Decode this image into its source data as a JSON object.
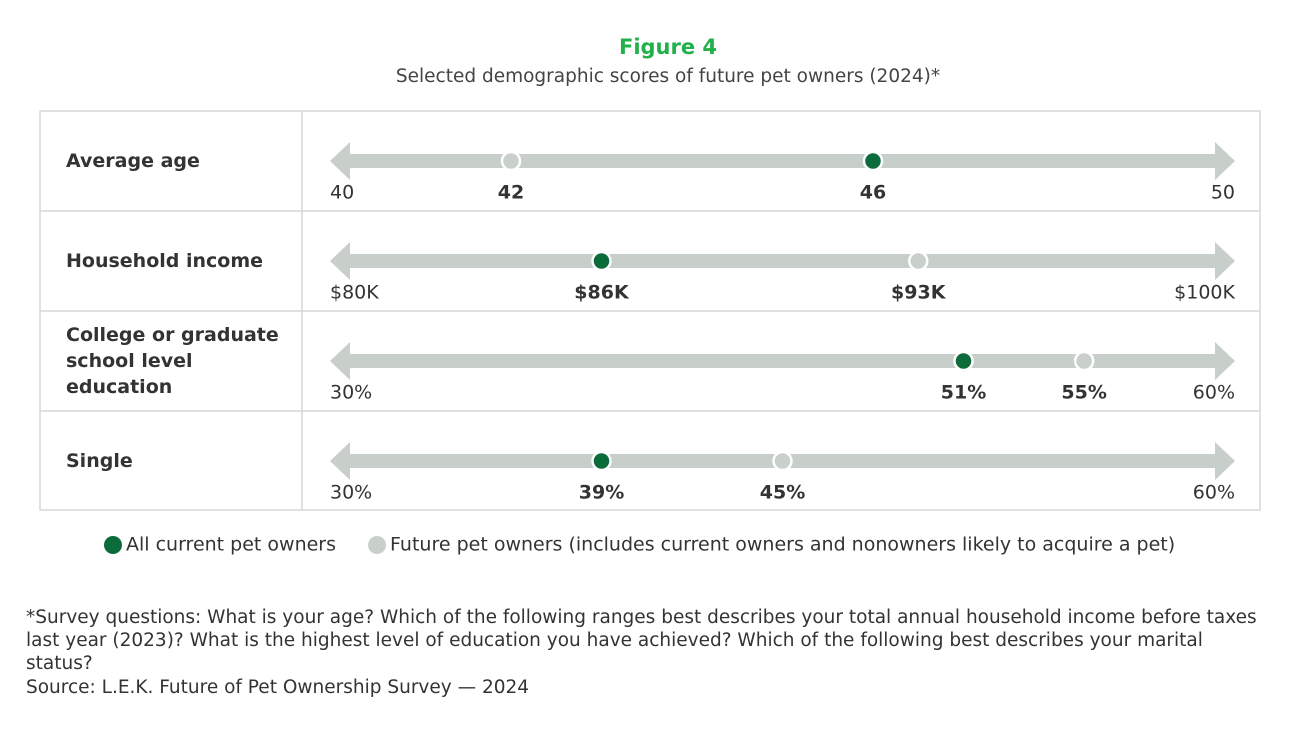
{
  "chart_data": {
    "type": "dot",
    "title": "Figure 4",
    "subtitle": "Selected demographic scores of future pet owners (2024)*",
    "categories": [
      "Average age",
      "Household income",
      "College or graduate school level education",
      "Single"
    ],
    "axes": [
      {
        "xlim": [
          40,
          50
        ],
        "xticks": [
          40,
          50
        ]
      },
      {
        "xlim": [
          80000,
          100000
        ],
        "xticks": [
          {
            "value": 80000,
            "label": "$80K"
          },
          {
            "value": 100000,
            "label": "$100K"
          }
        ]
      },
      {
        "xlim": [
          30,
          60
        ],
        "xticks": [
          {
            "value": 30,
            "label": "30%"
          },
          {
            "value": 60,
            "label": "60%"
          }
        ]
      },
      {
        "xlim": [
          30,
          60
        ],
        "xticks": [
          {
            "value": 30,
            "label": "30%"
          },
          {
            "value": 60,
            "label": "60%"
          }
        ]
      }
    ],
    "series": [
      {
        "name": "All current pet owners",
        "color": "#0b6b3a",
        "values": [
          46,
          86000,
          51,
          39
        ],
        "value_labels": [
          "46",
          "$86K",
          "51%",
          "39%"
        ]
      },
      {
        "name": "Future pet owners (includes current owners and nonowners likely to acquire a pet)",
        "color": "#c9d0cc",
        "values": [
          42,
          93000,
          55,
          45
        ],
        "value_labels": [
          "42",
          "$93K",
          "55%",
          "45%"
        ]
      }
    ],
    "footnote": "*Survey questions: What is your age? Which of the following ranges best describes your total annual household income before taxes last year (2023)? What is the highest level of education you have achieved? Which of the following best describes your marital status?",
    "source": "Source: L.E.K. Future of Pet Ownership Survey — 2024"
  }
}
